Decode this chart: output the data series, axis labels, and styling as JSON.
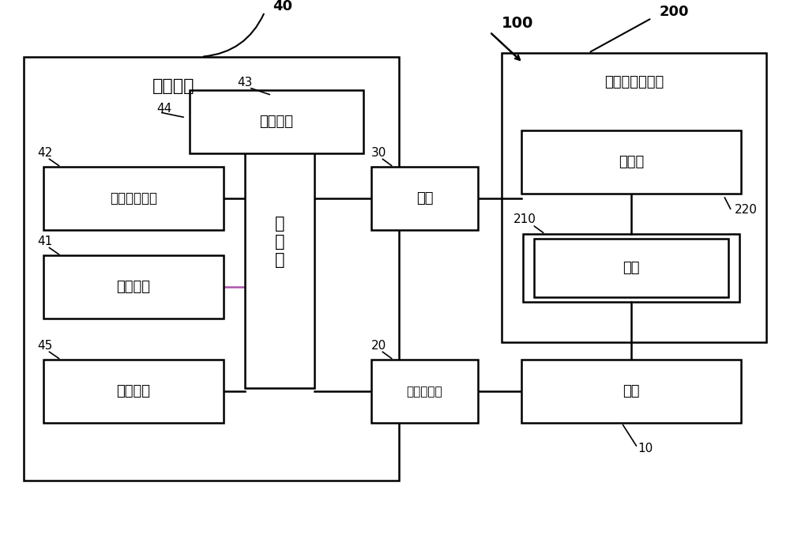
{
  "bg_color": "#ffffff",
  "line_color": "#000000",
  "box_color": "#ffffff",
  "font_color": "#000000",
  "label_100": "100",
  "label_40": "40",
  "label_44": "44",
  "label_42": "42",
  "label_43": "43",
  "label_41": "41",
  "label_45": "45",
  "label_30": "30",
  "label_20": "20",
  "label_200": "200",
  "label_210": "210",
  "label_220": "220",
  "label_10": "10",
  "text_control": "控制终端",
  "text_storage_device": "存储设备",
  "text_image_judge": "影像判断单元",
  "text_processor": "处\n理\n器",
  "text_storage_unit": "存储单元",
  "text_input_unit": "输入单元",
  "text_camera": "相机",
  "text_cylinder_ctrl": "电缸控制器",
  "text_card_pc": "卡片计算机装置",
  "text_solenoid": "电磁阀",
  "text_button": "按钮",
  "text_cylinder": "电缸"
}
